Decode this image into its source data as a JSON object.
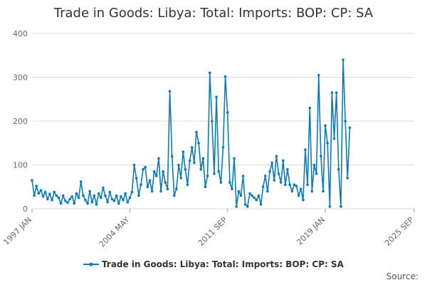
{
  "chart_data": {
    "type": "line",
    "title": "Trade in Goods: Libya: Total: Imports: BOP: CP: SA",
    "xlabel": "",
    "ylabel": "",
    "ylim": [
      0,
      400
    ],
    "yticks": [
      "0",
      "100",
      "200",
      "300",
      "400"
    ],
    "xticks": [
      "1997 JAN",
      "2004 MAY",
      "2011 SEP",
      "2019 JAN",
      "2025 SEP"
    ],
    "grid": true,
    "legend_position": "bottom",
    "color": "#0d7ab8",
    "series": [
      {
        "name": "Trade in Goods: Libya: Total: Imports: BOP: CP: SA",
        "values": [
          [
            "1997 JAN",
            65
          ],
          [
            "1997 MAR",
            30
          ],
          [
            "1997 MAY",
            52
          ],
          [
            "1997 JUL",
            35
          ],
          [
            "1997 SEP",
            42
          ],
          [
            "1997 NOV",
            28
          ],
          [
            "1998 JAN",
            38
          ],
          [
            "1998 MAR",
            22
          ],
          [
            "1998 MAY",
            34
          ],
          [
            "1998 JUL",
            20
          ],
          [
            "1998 SEP",
            38
          ],
          [
            "1998 NOV",
            30
          ],
          [
            "1999 JAN",
            25
          ],
          [
            "1999 MAR",
            12
          ],
          [
            "1999 MAY",
            30
          ],
          [
            "1999 JUL",
            18
          ],
          [
            "1999 SEP",
            14
          ],
          [
            "1999 NOV",
            22
          ],
          [
            "2000 JAN",
            28
          ],
          [
            "2000 MAR",
            12
          ],
          [
            "2000 MAY",
            35
          ],
          [
            "2000 JUL",
            25
          ],
          [
            "2000 SEP",
            62
          ],
          [
            "2000 NOV",
            30
          ],
          [
            "2001 JAN",
            20
          ],
          [
            "2001 MAR",
            12
          ],
          [
            "2001 MAY",
            40
          ],
          [
            "2001 JUL",
            15
          ],
          [
            "2001 SEP",
            30
          ],
          [
            "2001 NOV",
            10
          ],
          [
            "2002 JAN",
            35
          ],
          [
            "2002 MAR",
            25
          ],
          [
            "2002 MAY",
            48
          ],
          [
            "2002 JUL",
            30
          ],
          [
            "2002 SEP",
            15
          ],
          [
            "2002 NOV",
            38
          ],
          [
            "2003 JAN",
            22
          ],
          [
            "2003 MAR",
            18
          ],
          [
            "2003 MAY",
            30
          ],
          [
            "2003 JUL",
            12
          ],
          [
            "2003 SEP",
            28
          ],
          [
            "2003 NOV",
            20
          ],
          [
            "2004 JAN",
            35
          ],
          [
            "2004 MAR",
            15
          ],
          [
            "2004 MAY",
            25
          ],
          [
            "2004 JUL",
            38
          ],
          [
            "2004 SEP",
            100
          ],
          [
            "2004 NOV",
            70
          ],
          [
            "2005 JAN",
            30
          ],
          [
            "2005 MAR",
            55
          ],
          [
            "2005 MAY",
            90
          ],
          [
            "2005 JUL",
            95
          ],
          [
            "2005 SEP",
            50
          ],
          [
            "2005 NOV",
            65
          ],
          [
            "2006 JAN",
            40
          ],
          [
            "2006 MAR",
            85
          ],
          [
            "2006 MAY",
            75
          ],
          [
            "2006 JUL",
            115
          ],
          [
            "2006 SEP",
            40
          ],
          [
            "2006 NOV",
            85
          ],
          [
            "2007 JAN",
            60
          ],
          [
            "2007 MAR",
            45
          ],
          [
            "2007 MAY",
            268
          ],
          [
            "2007 JUL",
            120
          ],
          [
            "2007 SEP",
            30
          ],
          [
            "2007 NOV",
            45
          ],
          [
            "2008 JAN",
            100
          ],
          [
            "2008 MAR",
            70
          ],
          [
            "2008 MAY",
            130
          ],
          [
            "2008 JUL",
            90
          ],
          [
            "2008 SEP",
            55
          ],
          [
            "2008 NOV",
            110
          ],
          [
            "2009 JAN",
            140
          ],
          [
            "2009 MAR",
            105
          ],
          [
            "2009 MAY",
            175
          ],
          [
            "2009 JUL",
            150
          ],
          [
            "2009 SEP",
            90
          ],
          [
            "2009 NOV",
            115
          ],
          [
            "2010 JAN",
            50
          ],
          [
            "2010 MAR",
            75
          ],
          [
            "2010 MAY",
            310
          ],
          [
            "2010 JUL",
            200
          ],
          [
            "2010 SEP",
            80
          ],
          [
            "2010 NOV",
            255
          ],
          [
            "2011 JAN",
            85
          ],
          [
            "2011 MAR",
            60
          ],
          [
            "2011 MAY",
            140
          ],
          [
            "2011 JUL",
            302
          ],
          [
            "2011 SEP",
            220
          ],
          [
            "2011 NOV",
            60
          ],
          [
            "2012 JAN",
            45
          ],
          [
            "2012 MAR",
            115
          ],
          [
            "2012 MAY",
            5
          ],
          [
            "2012 JUL",
            40
          ],
          [
            "2012 SEP",
            30
          ],
          [
            "2012 NOV",
            75
          ],
          [
            "2013 JAN",
            10
          ],
          [
            "2013 MAR",
            5
          ],
          [
            "2013 MAY",
            35
          ],
          [
            "2013 JUL",
            30
          ],
          [
            "2013 SEP",
            25
          ],
          [
            "2013 NOV",
            20
          ],
          [
            "2014 JAN",
            30
          ],
          [
            "2014 MAR",
            10
          ],
          [
            "2014 MAY",
            50
          ],
          [
            "2014 JUL",
            75
          ],
          [
            "2014 SEP",
            40
          ],
          [
            "2014 NOV",
            85
          ],
          [
            "2015 JAN",
            105
          ],
          [
            "2015 MAR",
            65
          ],
          [
            "2015 MAY",
            120
          ],
          [
            "2015 JUL",
            80
          ],
          [
            "2015 SEP",
            60
          ],
          [
            "2015 NOV",
            110
          ],
          [
            "2016 JAN",
            55
          ],
          [
            "2016 MAR",
            90
          ],
          [
            "2016 MAY",
            55
          ],
          [
            "2016 JUL",
            40
          ],
          [
            "2016 SEP",
            55
          ],
          [
            "2016 NOV",
            52
          ],
          [
            "2017 JAN",
            30
          ],
          [
            "2017 MAR",
            45
          ],
          [
            "2017 MAY",
            20
          ],
          [
            "2017 JUL",
            135
          ],
          [
            "2017 SEP",
            55
          ],
          [
            "2017 NOV",
            230
          ],
          [
            "2018 JAN",
            40
          ],
          [
            "2018 MAR",
            100
          ],
          [
            "2018 MAY",
            80
          ],
          [
            "2018 JUL",
            305
          ],
          [
            "2018 SEP",
            120
          ],
          [
            "2018 NOV",
            40
          ],
          [
            "2019 JAN",
            190
          ],
          [
            "2019 MAR",
            150
          ],
          [
            "2019 MAY",
            5
          ],
          [
            "2019 JUL",
            265
          ],
          [
            "2019 SEP",
            160
          ],
          [
            "2019 NOV",
            265
          ],
          [
            "2020 JAN",
            90
          ],
          [
            "2020 MAR",
            5
          ],
          [
            "2020 MAY",
            340
          ],
          [
            "2020 JUL",
            200
          ],
          [
            "2020 SEP",
            70
          ],
          [
            "2020 NOV",
            185
          ]
        ]
      }
    ]
  },
  "legend": {
    "label": "Trade in Goods: Libya: Total: Imports: BOP: CP: SA"
  },
  "source": {
    "label": "Source:"
  }
}
